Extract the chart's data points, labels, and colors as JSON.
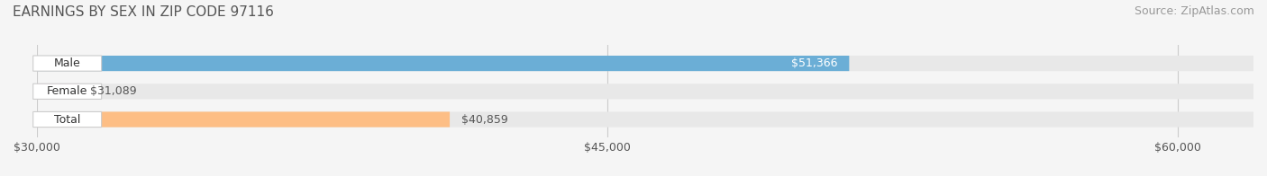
{
  "title": "EARNINGS BY SEX IN ZIP CODE 97116",
  "source": "Source: ZipAtlas.com",
  "categories": [
    "Male",
    "Female",
    "Total"
  ],
  "values": [
    51366,
    31089,
    40859
  ],
  "bar_colors": [
    "#6baed6",
    "#fa9fb5",
    "#fdbe85"
  ],
  "label_colors": [
    "#ffffff",
    "#555555",
    "#555555"
  ],
  "label_positions": [
    "inside_end",
    "outside_end",
    "outside_end"
  ],
  "value_labels": [
    "$51,366",
    "$31,089",
    "$40,859"
  ],
  "xlim": [
    30000,
    62000
  ],
  "xticks": [
    30000,
    45000,
    60000
  ],
  "xtick_labels": [
    "$30,000",
    "$45,000",
    "$60,000"
  ],
  "background_color": "#f5f5f5",
  "bar_background_color": "#e8e8e8",
  "title_fontsize": 11,
  "source_fontsize": 9,
  "tick_fontsize": 9,
  "label_fontsize": 9,
  "bar_height": 0.55,
  "bar_gap": 0.18
}
